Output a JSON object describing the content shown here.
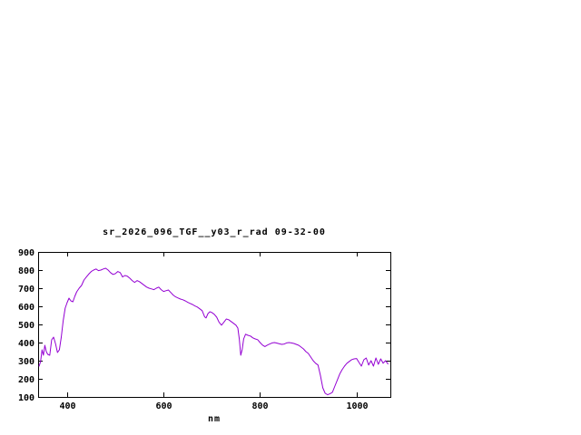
{
  "window": {
    "background": "#ffffff"
  },
  "chart_data": {
    "type": "line",
    "title": "sr_2026_096_TGF__y03_r_rad 09-32-00",
    "xlabel": "nm",
    "ylabel": "",
    "xlim": [
      340,
      1070
    ],
    "ylim": [
      100,
      900
    ],
    "xticks": [
      400,
      600,
      800,
      1000
    ],
    "yticks": [
      100,
      200,
      300,
      400,
      500,
      600,
      700,
      800,
      900
    ],
    "grid": false,
    "legend": "none",
    "axis_color": "#000000",
    "text_color": "#000000",
    "series": [
      {
        "name": "sr_2026_096_TGF__y03_r_rad",
        "color": "#9400d3",
        "points": [
          [
            342,
            270
          ],
          [
            345,
            295
          ],
          [
            348,
            360
          ],
          [
            351,
            330
          ],
          [
            354,
            385
          ],
          [
            357,
            350
          ],
          [
            360,
            335
          ],
          [
            364,
            330
          ],
          [
            368,
            415
          ],
          [
            372,
            430
          ],
          [
            376,
            395
          ],
          [
            380,
            345
          ],
          [
            384,
            360
          ],
          [
            388,
            430
          ],
          [
            392,
            520
          ],
          [
            396,
            590
          ],
          [
            400,
            620
          ],
          [
            404,
            645
          ],
          [
            408,
            630
          ],
          [
            412,
            625
          ],
          [
            416,
            655
          ],
          [
            420,
            680
          ],
          [
            425,
            700
          ],
          [
            430,
            715
          ],
          [
            435,
            745
          ],
          [
            440,
            762
          ],
          [
            445,
            778
          ],
          [
            450,
            792
          ],
          [
            455,
            800
          ],
          [
            460,
            806
          ],
          [
            465,
            797
          ],
          [
            470,
            800
          ],
          [
            475,
            806
          ],
          [
            480,
            810
          ],
          [
            485,
            800
          ],
          [
            490,
            786
          ],
          [
            495,
            776
          ],
          [
            500,
            780
          ],
          [
            505,
            792
          ],
          [
            510,
            786
          ],
          [
            515,
            762
          ],
          [
            520,
            770
          ],
          [
            525,
            766
          ],
          [
            530,
            755
          ],
          [
            535,
            742
          ],
          [
            540,
            732
          ],
          [
            545,
            742
          ],
          [
            550,
            736
          ],
          [
            555,
            726
          ],
          [
            560,
            716
          ],
          [
            565,
            706
          ],
          [
            570,
            700
          ],
          [
            575,
            696
          ],
          [
            580,
            692
          ],
          [
            585,
            700
          ],
          [
            590,
            706
          ],
          [
            595,
            692
          ],
          [
            600,
            682
          ],
          [
            605,
            686
          ],
          [
            610,
            690
          ],
          [
            615,
            676
          ],
          [
            620,
            662
          ],
          [
            625,
            652
          ],
          [
            630,
            646
          ],
          [
            635,
            640
          ],
          [
            640,
            636
          ],
          [
            645,
            630
          ],
          [
            650,
            622
          ],
          [
            655,
            616
          ],
          [
            660,
            610
          ],
          [
            665,
            602
          ],
          [
            670,
            596
          ],
          [
            675,
            586
          ],
          [
            680,
            576
          ],
          [
            685,
            542
          ],
          [
            688,
            536
          ],
          [
            692,
            560
          ],
          [
            696,
            570
          ],
          [
            700,
            566
          ],
          [
            705,
            556
          ],
          [
            710,
            540
          ],
          [
            715,
            512
          ],
          [
            720,
            496
          ],
          [
            725,
            512
          ],
          [
            730,
            530
          ],
          [
            735,
            526
          ],
          [
            740,
            516
          ],
          [
            745,
            506
          ],
          [
            750,
            496
          ],
          [
            754,
            480
          ],
          [
            757,
            420
          ],
          [
            760,
            330
          ],
          [
            763,
            362
          ],
          [
            766,
            420
          ],
          [
            770,
            446
          ],
          [
            775,
            440
          ],
          [
            780,
            436
          ],
          [
            785,
            426
          ],
          [
            790,
            420
          ],
          [
            795,
            416
          ],
          [
            800,
            400
          ],
          [
            805,
            386
          ],
          [
            810,
            378
          ],
          [
            815,
            386
          ],
          [
            820,
            392
          ],
          [
            825,
            398
          ],
          [
            830,
            400
          ],
          [
            835,
            397
          ],
          [
            840,
            393
          ],
          [
            845,
            390
          ],
          [
            850,
            392
          ],
          [
            855,
            398
          ],
          [
            860,
            400
          ],
          [
            865,
            398
          ],
          [
            870,
            395
          ],
          [
            875,
            390
          ],
          [
            880,
            385
          ],
          [
            885,
            375
          ],
          [
            890,
            365
          ],
          [
            895,
            350
          ],
          [
            900,
            340
          ],
          [
            905,
            320
          ],
          [
            910,
            300
          ],
          [
            915,
            286
          ],
          [
            920,
            276
          ],
          [
            925,
            220
          ],
          [
            930,
            150
          ],
          [
            935,
            120
          ],
          [
            940,
            112
          ],
          [
            945,
            118
          ],
          [
            950,
            126
          ],
          [
            955,
            160
          ],
          [
            960,
            192
          ],
          [
            965,
            226
          ],
          [
            970,
            250
          ],
          [
            975,
            270
          ],
          [
            980,
            286
          ],
          [
            985,
            296
          ],
          [
            990,
            306
          ],
          [
            995,
            310
          ],
          [
            1000,
            312
          ],
          [
            1005,
            290
          ],
          [
            1010,
            270
          ],
          [
            1015,
            305
          ],
          [
            1020,
            315
          ],
          [
            1025,
            276
          ],
          [
            1030,
            300
          ],
          [
            1035,
            270
          ],
          [
            1040,
            315
          ],
          [
            1045,
            280
          ],
          [
            1050,
            310
          ],
          [
            1055,
            286
          ],
          [
            1060,
            300
          ],
          [
            1065,
            282
          ]
        ]
      }
    ]
  }
}
